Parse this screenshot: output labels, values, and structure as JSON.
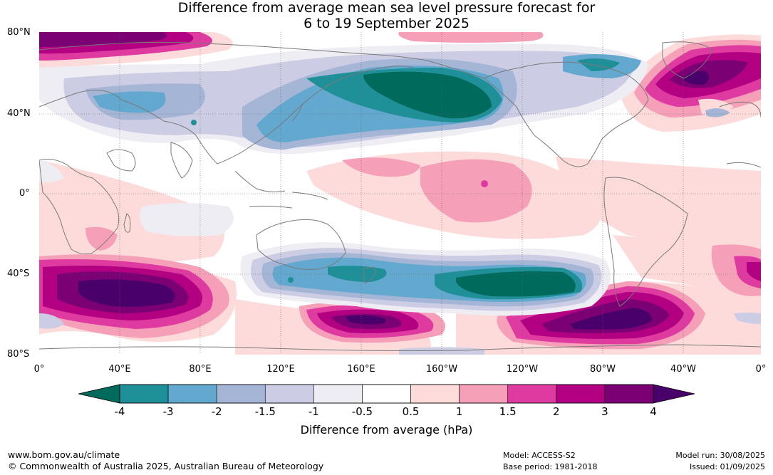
{
  "title": {
    "line1": "Difference from average mean sea level pressure forecast for",
    "line2": "6 to 19 September 2025"
  },
  "map": {
    "lat_labels": [
      "80°N",
      "40°N",
      "0°",
      "40°S",
      "80°S"
    ],
    "lon_labels": [
      "0°",
      "40°E",
      "80°E",
      "120°E",
      "160°E",
      "160°W",
      "120°W",
      "80°W",
      "40°W",
      "0°"
    ],
    "gridlines": true,
    "coastline_color": "#7a7a7a",
    "anomaly_regions": [
      {
        "region": "North Pacific / Bering",
        "level": "-4"
      },
      {
        "region": "Southern Ocean south of New Zealand / South Pacific",
        "level": "-4"
      },
      {
        "region": "Tropical central Pacific",
        "level": "1.5"
      },
      {
        "region": "Southern Indian Ocean",
        "level": "4"
      },
      {
        "region": "South Atlantic / Drake Passage",
        "level": "4"
      },
      {
        "region": "North Atlantic",
        "level": "3"
      },
      {
        "region": "Arctic (Eurasia)",
        "level": "3"
      }
    ]
  },
  "colorbar": {
    "colors": [
      "#006a5c",
      "#1f8f98",
      "#62a8cf",
      "#a5b5d6",
      "#cccce4",
      "#efedf4",
      "#ffffff",
      "#fddbdb",
      "#f5a0b8",
      "#df3aa0",
      "#b30082",
      "#7b0074",
      "#4a006a"
    ],
    "tick_labels": [
      "-4",
      "-3",
      "-2",
      "-1.5",
      "-1",
      "-0.5",
      "0.5",
      "1",
      "1.5",
      "2",
      "3",
      "4"
    ],
    "title": "Difference from average (hPa)"
  },
  "footer": {
    "url": "www.bom.gov.au/climate",
    "copyright": "© Commonwealth of Australia 2025, Australian Bureau of Meteorology",
    "model": "Model: ACCESS-S2",
    "base_period": "Base period: 1981-2018",
    "model_run": "Model run: 30/08/2025",
    "issued": "Issued: 01/09/2025"
  }
}
